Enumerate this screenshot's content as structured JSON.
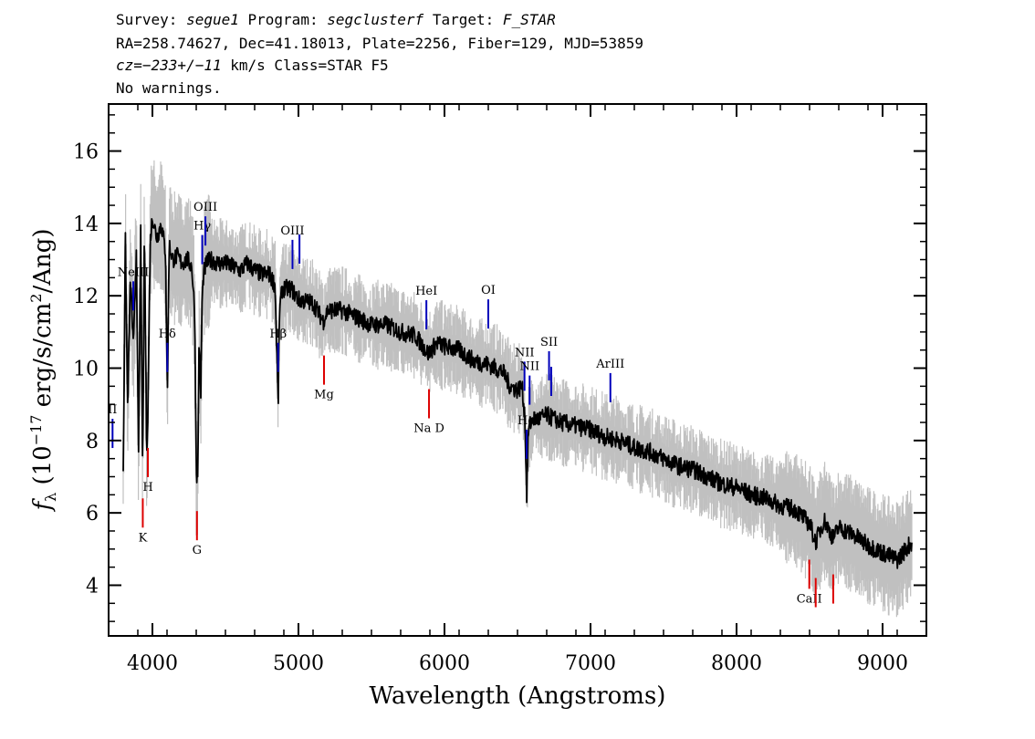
{
  "header": {
    "survey_label": "Survey:",
    "survey": "segue1",
    "program_label": "Program:",
    "program": "segclusterf",
    "target_label": "Target:",
    "target": "F_STAR",
    "line2": "RA=258.74627, Dec=41.18013, Plate=2256, Fiber=129, MJD=53859",
    "cz": "cz=−233+/−11",
    "line3_rest": " km/s Class=STAR F5",
    "line4": "No warnings."
  },
  "colors": {
    "spectrum": "#000000",
    "error_band": "#c0c0c0",
    "emission_line": "#0000bb",
    "absorption_line": "#dd0000"
  },
  "chart_data": {
    "type": "line",
    "xlabel": "Wavelength (Angstroms)",
    "ylabel_parts": {
      "f": "f",
      "sub": "λ",
      "pre": " (10",
      "exp": "−17",
      "post": " erg/s/cm",
      "exp2": "2",
      "end": "/Ang)"
    },
    "xlim": [
      3700,
      9300
    ],
    "ylim": [
      2.6,
      17.3
    ],
    "xticks": [
      4000,
      5000,
      6000,
      7000,
      8000,
      9000
    ],
    "yticks": [
      4,
      6,
      8,
      10,
      12,
      14,
      16
    ],
    "grid": false,
    "series": [
      {
        "x": [
          3800,
          3815,
          3830,
          3850,
          3870,
          3890,
          3905,
          3920,
          3933,
          3945,
          3960,
          3968,
          3985,
          4000,
          4030,
          4060,
          4090,
          4102,
          4115,
          4140,
          4170,
          4200,
          4240,
          4270,
          4290,
          4300,
          4310,
          4320,
          4330,
          4340,
          4350,
          4370,
          4400,
          4450,
          4500,
          4550,
          4600,
          4650,
          4700,
          4750,
          4800,
          4840,
          4855,
          4861,
          4870,
          4890,
          4950,
          5000,
          5100,
          5170,
          5200,
          5300,
          5400,
          5500,
          5600,
          5700,
          5800,
          5890,
          5950,
          6000,
          6100,
          6200,
          6300,
          6400,
          6450,
          6500,
          6530,
          6550,
          6563,
          6575,
          6600,
          6650,
          6700,
          6800,
          6900,
          7000,
          7100,
          7200,
          7300,
          7400,
          7500,
          7600,
          7700,
          7800,
          7900,
          8000,
          8100,
          8200,
          8300,
          8400,
          8500,
          8542,
          8600,
          8662,
          8700,
          8800,
          8900,
          9000,
          9100,
          9200
        ],
        "y": [
          7.2,
          13.5,
          9.0,
          12.5,
          10.5,
          13.3,
          7.5,
          13.8,
          6.8,
          14.0,
          7.8,
          8.5,
          13.5,
          14.2,
          13.6,
          14.0,
          13.2,
          9.3,
          13.4,
          13.0,
          13.1,
          12.9,
          13.0,
          12.8,
          11.5,
          7.2,
          6.9,
          11.0,
          9.0,
          11.8,
          12.6,
          12.9,
          13.0,
          12.9,
          12.9,
          12.8,
          12.7,
          12.9,
          12.7,
          12.6,
          12.6,
          12.3,
          10.0,
          8.9,
          11.6,
          12.2,
          12.2,
          11.9,
          11.8,
          11.3,
          11.6,
          11.6,
          11.4,
          11.2,
          11.2,
          11.0,
          10.9,
          10.4,
          10.7,
          10.6,
          10.5,
          10.2,
          10.1,
          9.9,
          9.5,
          9.4,
          9.5,
          8.7,
          6.5,
          8.3,
          8.6,
          8.6,
          8.7,
          8.5,
          8.4,
          8.3,
          8.1,
          8.0,
          7.8,
          7.7,
          7.5,
          7.3,
          7.2,
          7.0,
          6.8,
          6.7,
          6.5,
          6.4,
          6.2,
          6.1,
          5.7,
          5.2,
          5.8,
          5.3,
          5.6,
          5.4,
          5.1,
          4.9,
          4.7,
          5.2
        ]
      }
    ],
    "lines": [
      {
        "name": "II",
        "wave": 3727,
        "kind": "emission"
      },
      {
        "name": "NeIII",
        "wave": 3869,
        "kind": "emission"
      },
      {
        "name": "Hδ",
        "wave": 4102,
        "kind": "emission"
      },
      {
        "name": "Hγ",
        "wave": 4341,
        "kind": "emission"
      },
      {
        "name": "OIII",
        "wave": 4363,
        "kind": "emission"
      },
      {
        "name": "Hβ",
        "wave": 4861,
        "kind": "emission"
      },
      {
        "name": "OIII",
        "wave": 4959,
        "kind": "emission"
      },
      {
        "name": "",
        "wave": 5007,
        "kind": "emission"
      },
      {
        "name": "HeI",
        "wave": 5876,
        "kind": "emission"
      },
      {
        "name": "OI",
        "wave": 6300,
        "kind": "emission"
      },
      {
        "name": "NII",
        "wave": 6548,
        "kind": "emission"
      },
      {
        "name": "Hα",
        "wave": 6563,
        "kind": "emission"
      },
      {
        "name": "NII",
        "wave": 6583,
        "kind": "emission"
      },
      {
        "name": "SII",
        "wave": 6716,
        "kind": "emission"
      },
      {
        "name": "",
        "wave": 6731,
        "kind": "emission"
      },
      {
        "name": "ArIII",
        "wave": 7136,
        "kind": "emission"
      },
      {
        "name": "K",
        "wave": 3934,
        "kind": "absorption"
      },
      {
        "name": "H",
        "wave": 3969,
        "kind": "absorption"
      },
      {
        "name": "G",
        "wave": 4305,
        "kind": "absorption"
      },
      {
        "name": "Mg",
        "wave": 5175,
        "kind": "absorption"
      },
      {
        "name": "Na D",
        "wave": 5894,
        "kind": "absorption"
      },
      {
        "name": "CaII",
        "wave": 8498,
        "kind": "absorption"
      },
      {
        "name": "",
        "wave": 8542,
        "kind": "absorption"
      },
      {
        "name": "",
        "wave": 8662,
        "kind": "absorption"
      }
    ]
  }
}
